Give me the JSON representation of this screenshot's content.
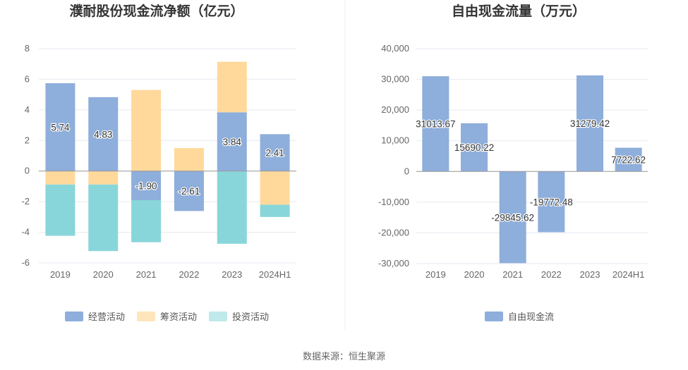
{
  "chart_data": [
    {
      "type": "bar",
      "stacked": true,
      "title": "濮耐股份现金流净额（亿元）",
      "categories": [
        "2019",
        "2020",
        "2021",
        "2022",
        "2023",
        "2024H1"
      ],
      "ylim": [
        -6,
        8
      ],
      "yticks": [
        8,
        6,
        4,
        2,
        0,
        -2,
        -4,
        -6
      ],
      "series": [
        {
          "name": "经营活动",
          "color": "#8eaedb",
          "values": [
            5.74,
            4.83,
            -1.9,
            -2.61,
            3.84,
            2.41
          ],
          "labels": [
            "5.74",
            "4.83",
            "-1.90",
            "-2.61",
            "3.84",
            "2.41"
          ]
        },
        {
          "name": "筹资活动",
          "color": "#ffd99b",
          "values": [
            -0.88,
            -0.88,
            5.3,
            1.5,
            3.3,
            -2.2
          ]
        },
        {
          "name": "投资活动",
          "color": "#88d6da",
          "values": [
            -3.35,
            -4.35,
            -2.75,
            0,
            -4.75,
            -0.8
          ]
        }
      ],
      "legend_colors": [
        "#8eaedb",
        "#fee5bb",
        "#c0e9eb"
      ]
    },
    {
      "type": "bar",
      "title": "自由现金流量（万元）",
      "categories": [
        "2019",
        "2020",
        "2021",
        "2022",
        "2023",
        "2024H1"
      ],
      "ylim": [
        -30000,
        40000
      ],
      "yticks": [
        "40,000",
        "30,000",
        "20,000",
        "10,000",
        "0",
        "-10,000",
        "-20,000",
        "-30,000"
      ],
      "ytick_values": [
        40000,
        30000,
        20000,
        10000,
        0,
        -10000,
        -20000,
        -30000
      ],
      "series": [
        {
          "name": "自由现金流",
          "color": "#8eaedb",
          "values": [
            31013.67,
            15690.22,
            -29845.62,
            -19772.48,
            31279.42,
            7722.62
          ],
          "labels": [
            "31013.67",
            "15690.22",
            "-29845.62",
            "-19772.48",
            "31279.42",
            "7722.62"
          ]
        }
      ]
    }
  ],
  "source_text": "数据来源：恒生聚源"
}
